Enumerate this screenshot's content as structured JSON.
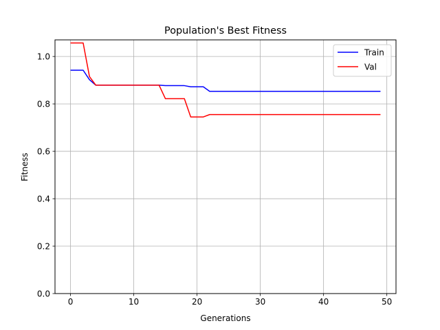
{
  "chart_data": {
    "type": "line",
    "title": "Population's Best Fitness",
    "xlabel": "Generations",
    "ylabel": "Fitness",
    "xlim": [
      -2.45,
      51.45
    ],
    "ylim": [
      0,
      1.07
    ],
    "xticks": [
      0,
      10,
      20,
      30,
      40,
      50
    ],
    "yticks": [
      0.0,
      0.2,
      0.4,
      0.6,
      0.8,
      1.0
    ],
    "xtick_labels": [
      "0",
      "10",
      "20",
      "30",
      "40",
      "50"
    ],
    "ytick_labels": [
      "0.0",
      "0.2",
      "0.4",
      "0.6",
      "0.8",
      "1.0"
    ],
    "grid": true,
    "legend_position": "top-right",
    "series": [
      {
        "name": "Train",
        "color": "#0000ff",
        "points": [
          [
            0,
            0.942
          ],
          [
            2,
            0.942
          ],
          [
            3,
            0.902
          ],
          [
            4,
            0.879
          ],
          [
            14,
            0.879
          ],
          [
            15,
            0.877
          ],
          [
            18,
            0.877
          ],
          [
            19,
            0.872
          ],
          [
            21,
            0.872
          ],
          [
            22,
            0.853
          ],
          [
            49,
            0.853
          ]
        ]
      },
      {
        "name": "Val",
        "color": "#ff0000",
        "points": [
          [
            0,
            1.057
          ],
          [
            2,
            1.057
          ],
          [
            3,
            0.915
          ],
          [
            4,
            0.879
          ],
          [
            14,
            0.879
          ],
          [
            15,
            0.822
          ],
          [
            18,
            0.822
          ],
          [
            19,
            0.745
          ],
          [
            21,
            0.745
          ],
          [
            22,
            0.755
          ],
          [
            49,
            0.755
          ]
        ]
      }
    ]
  }
}
